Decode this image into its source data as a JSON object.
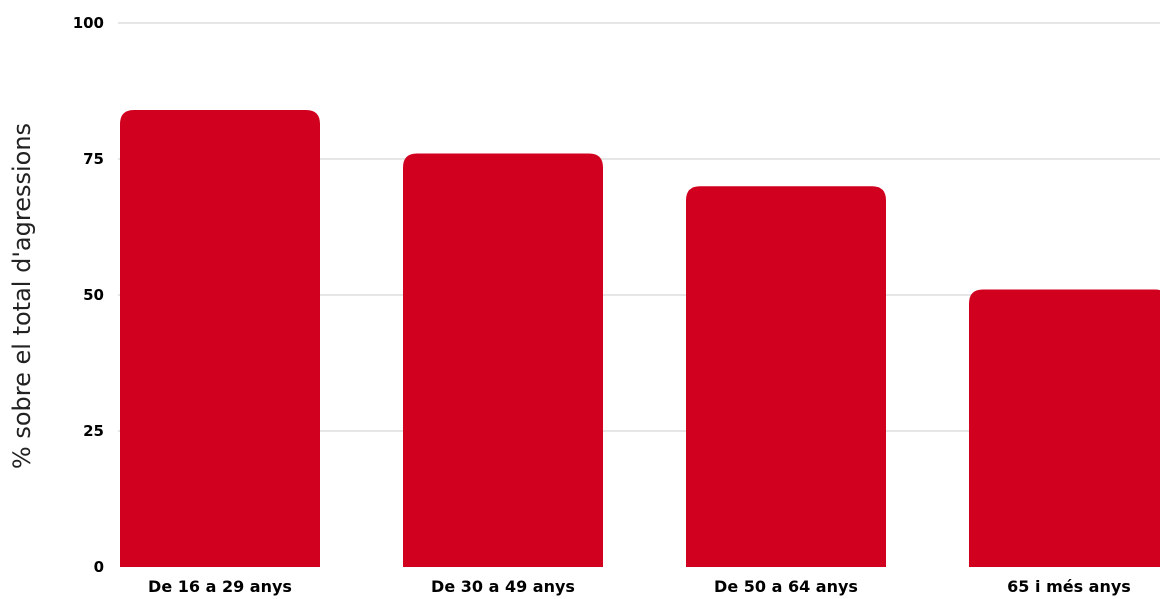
{
  "chart_data": {
    "type": "bar",
    "title": "",
    "xlabel": "",
    "ylabel": "% sobre el total d'agressions",
    "categories": [
      "De 16 a 29 anys",
      "De 30 a 49 anys",
      "De 50 a 64 anys",
      "65 i més anys"
    ],
    "values": [
      84,
      76,
      70,
      51
    ],
    "ylim": [
      0,
      100
    ],
    "yticks": [
      0,
      25,
      50,
      75,
      100
    ],
    "grid": true,
    "legend": "none",
    "bar_color": "#D2001F"
  }
}
